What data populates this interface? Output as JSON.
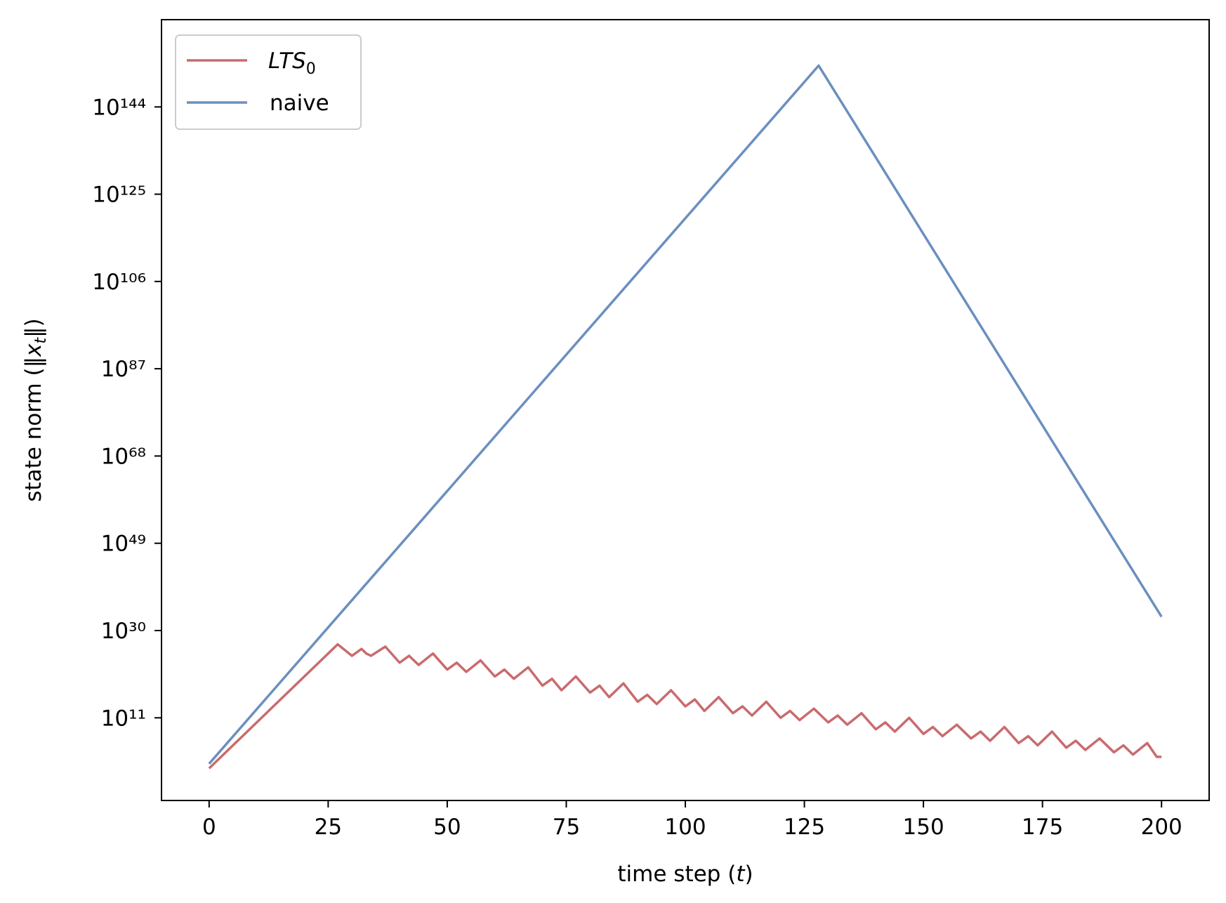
{
  "chart_data": {
    "type": "line",
    "xlabel": "time step (t)",
    "ylabel": "state norm (‖x_t‖)",
    "xlim": [
      -10,
      210
    ],
    "ylim_log10": [
      -7,
      163
    ],
    "yscale": "log",
    "grid": false,
    "legend_position": "upper-left",
    "x_ticks": [
      0,
      25,
      50,
      75,
      100,
      125,
      150,
      175,
      200
    ],
    "y_ticks": [
      {
        "exponent": 11,
        "label": "10¹¹"
      },
      {
        "exponent": 30,
        "label": "10³⁰"
      },
      {
        "exponent": 49,
        "label": "10⁴⁹"
      },
      {
        "exponent": 68,
        "label": "10⁶⁸"
      },
      {
        "exponent": 87,
        "label": "10⁸⁷"
      },
      {
        "exponent": 106,
        "label": "10¹⁰⁶"
      },
      {
        "exponent": 125,
        "label": "10¹²⁵"
      },
      {
        "exponent": 144,
        "label": "10¹⁴⁴"
      }
    ],
    "series": [
      {
        "name": "LTS₀",
        "color": "#c96b6e",
        "log10_values": {
          "x": [
            0,
            27,
            30,
            32,
            33,
            34,
            37,
            40,
            42,
            44,
            47,
            50,
            52,
            54,
            57,
            60,
            62,
            64,
            67,
            70,
            72,
            74,
            77,
            80,
            82,
            84,
            87,
            90,
            92,
            94,
            97,
            100,
            102,
            104,
            107,
            110,
            112,
            114,
            117,
            120,
            122,
            124,
            127,
            130,
            132,
            134,
            137,
            140,
            142,
            144,
            147,
            150,
            152,
            154,
            157,
            160,
            162,
            164,
            167,
            170,
            172,
            174,
            177,
            180,
            182,
            184,
            187,
            190,
            192,
            194,
            197,
            199,
            200
          ],
          "y": [
            0.0,
            27.0,
            24.5,
            26.0,
            25.0,
            24.5,
            26.5,
            23.0,
            24.5,
            22.5,
            25.0,
            21.5,
            23.0,
            21.0,
            23.5,
            20.0,
            21.5,
            19.5,
            22.0,
            18.0,
            19.5,
            17.0,
            20.0,
            16.5,
            18.0,
            15.5,
            18.5,
            14.5,
            16.0,
            14.0,
            17.0,
            13.5,
            15.0,
            12.5,
            15.5,
            12.0,
            13.5,
            11.5,
            14.5,
            11.0,
            12.5,
            10.5,
            13.0,
            10.0,
            11.5,
            9.5,
            12.0,
            8.5,
            10.0,
            8.0,
            11.0,
            7.5,
            9.0,
            7.0,
            9.5,
            6.5,
            8.0,
            6.0,
            9.0,
            5.5,
            7.0,
            5.0,
            8.0,
            4.5,
            6.0,
            4.0,
            6.5,
            3.5,
            5.0,
            3.0,
            5.5,
            2.5,
            2.5
          ]
        }
      },
      {
        "name": "naive",
        "color": "#6b8fbf",
        "log10_values": {
          "x": [
            0,
            128,
            200
          ],
          "y": [
            1.0,
            153.0,
            33.0
          ]
        }
      }
    ]
  }
}
